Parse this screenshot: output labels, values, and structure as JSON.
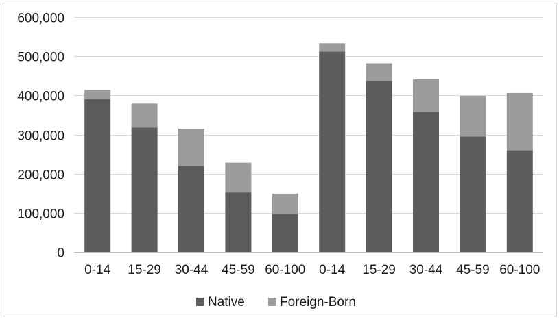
{
  "chart_data": {
    "type": "bar",
    "stacked": true,
    "categories": [
      "0-14",
      "15-29",
      "30-44",
      "45-59",
      "60-100",
      "0-14",
      "15-29",
      "30-44",
      "45-59",
      "60-100"
    ],
    "series": [
      {
        "name": "Native",
        "color": "#5c5c5c",
        "values": [
          390000,
          318000,
          220000,
          152000,
          97000,
          512000,
          437000,
          358000,
          295000,
          260000
        ]
      },
      {
        "name": "Foreign-Born",
        "color": "#9b9b9b",
        "values": [
          24000,
          61000,
          95000,
          76000,
          52000,
          21000,
          45000,
          83000,
          104000,
          146000
        ]
      }
    ],
    "title": "",
    "xlabel": "",
    "ylabel": "",
    "ylim": [
      0,
      600000
    ],
    "yticks": [
      0,
      100000,
      200000,
      300000,
      400000,
      500000,
      600000
    ],
    "ytick_labels": [
      "0",
      "100,000",
      "200,000",
      "300,000",
      "400,000",
      "500,000",
      "600,000"
    ],
    "grid": true,
    "legend_position": "bottom-center"
  }
}
